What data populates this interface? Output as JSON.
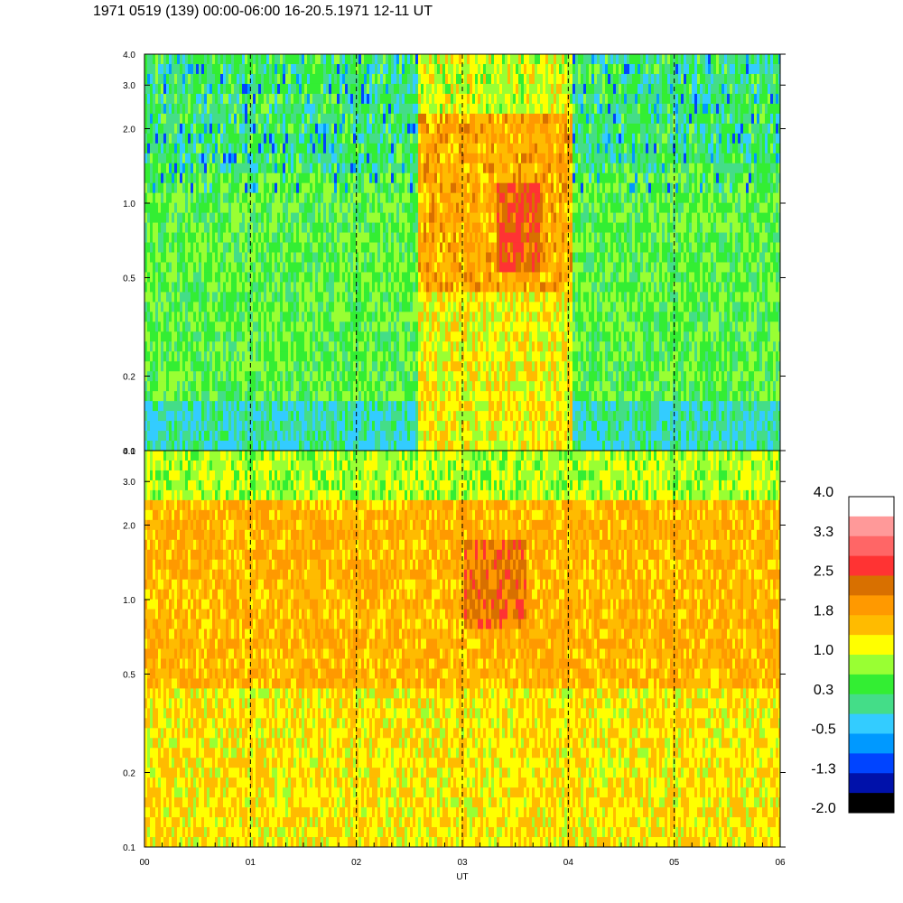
{
  "title": "1971 0519 (139) 00:00-06:00 16-20.5.1971 12-11 UT",
  "chart_data": {
    "type": "heatmap",
    "panels": [
      {
        "name": "",
        "y_scale": "log",
        "ylim": [
          0.1,
          4.0
        ],
        "y_ticks": [
          0.1,
          0.2,
          0.5,
          1.0,
          2.0,
          3.0,
          4.0
        ],
        "y_tick_labels": [
          "0.1",
          "0.2",
          "0.5",
          "1.0",
          "2.0",
          "3.0",
          "4.0"
        ]
      },
      {
        "name": "",
        "y_scale": "log",
        "ylim": [
          0.1,
          4.0
        ],
        "y_ticks": [
          0.1,
          0.2,
          0.5,
          1.0,
          2.0,
          3.0,
          4.0
        ],
        "y_tick_labels": [
          "0.1",
          "0.2",
          "0.5",
          "1.0",
          "2.0",
          "3.0",
          "4.0"
        ]
      }
    ],
    "xlabel": "UT",
    "ylabel": "",
    "xlim": [
      0,
      6
    ],
    "x_ticks": [
      0,
      1,
      2,
      3,
      4,
      5,
      6
    ],
    "x_tick_labels": [
      "00",
      "01",
      "02",
      "03",
      "04",
      "05",
      "06"
    ],
    "vertical_dashed_lines": [
      1,
      2,
      3,
      4,
      5
    ],
    "colorbar": {
      "labels": [
        "4.0",
        "3.3",
        "2.5",
        "1.8",
        "1.0",
        "0.3",
        "-0.5",
        "-1.3",
        "-2.0"
      ],
      "range": [
        -2.0,
        4.0
      ],
      "colors": [
        "#ffffff",
        "#ff9999",
        "#ff6666",
        "#ff3333",
        "#d87000",
        "#ff9900",
        "#ffbb00",
        "#ffff00",
        "#99ff33",
        "#33ee33",
        "#44dd88",
        "#33ccff",
        "#0099ff",
        "#0044ff",
        "#0011aa",
        "#000000"
      ]
    }
  }
}
